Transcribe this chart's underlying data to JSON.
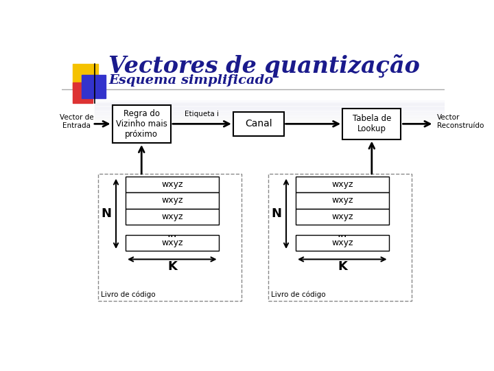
{
  "title": "Vectores de quantização",
  "subtitle": "Esquema simplificado",
  "title_color": "#1a1a8c",
  "subtitle_color": "#1a1a8c",
  "bg_color": "#ffffff",
  "box1_label": "Regra do\nVizinho mais\npróximo",
  "box2_label": "Canal",
  "box3_label": "Tabela de\nLookup",
  "left_label": "Vector de\nEntrada",
  "right_label": "Vector\nReconstruído",
  "etiqueta_label": "Etiqueta i",
  "codebook_label": "Livro de código",
  "k_label": "K",
  "n_label": "N",
  "wxyz": "wxyz",
  "dots": "...",
  "logo_yellow": "#f5c200",
  "logo_red": "#dd3333",
  "logo_blue": "#3333cc"
}
